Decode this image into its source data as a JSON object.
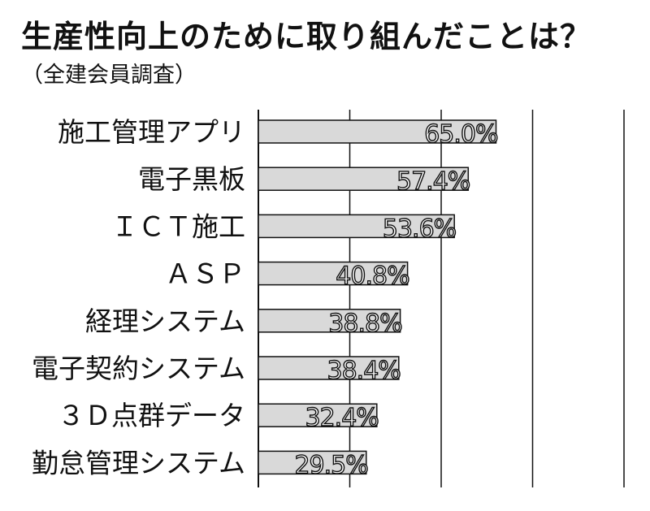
{
  "chart_data": {
    "type": "bar",
    "orientation": "horizontal",
    "title": "生産性向上のために取り組んだことは？",
    "subtitle": "（全建会員調査）",
    "categories": [
      "施工管理アプリ",
      "電子黒板",
      "ＩＣＴ施工",
      "ＡＳＰ",
      "経理システム",
      "電子契約システム",
      "３Ｄ点群データ",
      "勤怠管理システム"
    ],
    "values": [
      65.0,
      57.4,
      53.6,
      40.8,
      38.8,
      38.4,
      32.4,
      29.5
    ],
    "value_labels": [
      "65.0%",
      "57.4%",
      "53.6%",
      "40.8%",
      "38.8%",
      "38.4%",
      "32.4%",
      "29.5%"
    ],
    "xlim": [
      0,
      100
    ],
    "grid": true,
    "bar_color": "#d9d9d9",
    "bar_edge_color": "#111111"
  }
}
